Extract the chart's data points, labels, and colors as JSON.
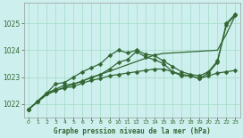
{
  "xlabel": "Graphe pression niveau de la mer (hPa)",
  "background_color": "#cdf0ee",
  "grid_color": "#aaddcc",
  "line_color": "#336633",
  "hours": [
    0,
    1,
    2,
    3,
    4,
    5,
    6,
    7,
    8,
    9,
    10,
    11,
    12,
    13,
    14,
    15,
    16,
    17,
    18,
    19,
    20,
    21,
    22,
    23
  ],
  "series_zigzag": [
    1021.8,
    1022.1,
    1022.4,
    1022.55,
    1022.7,
    1022.75,
    1022.85,
    1023.0,
    1023.1,
    1023.3,
    1023.55,
    1023.65,
    1023.95,
    1023.75,
    1023.65,
    1023.5,
    1023.2,
    1023.05,
    1023.05,
    1022.95,
    1023.15,
    1023.55,
    1024.95,
    1025.3
  ],
  "series_upper": [
    1021.8,
    1022.1,
    1022.4,
    1022.75,
    1022.8,
    1023.0,
    1023.2,
    1023.35,
    1023.5,
    1023.8,
    1024.0,
    1023.9,
    1024.0,
    1023.85,
    1023.8,
    1023.6,
    1023.4,
    1023.2,
    1023.1,
    1023.05,
    1023.2,
    1023.6,
    1025.0,
    1025.35
  ],
  "series_lower": [
    1021.8,
    1022.1,
    1022.4,
    1022.5,
    1022.6,
    1022.65,
    1022.78,
    1022.88,
    1022.95,
    1023.05,
    1023.1,
    1023.15,
    1023.2,
    1023.25,
    1023.3,
    1023.3,
    1023.2,
    1023.1,
    1023.05,
    1022.95,
    1023.05,
    1023.15,
    1023.2,
    1023.25
  ],
  "series_trend": [
    1021.8,
    1022.07,
    1022.34,
    1022.5,
    1022.62,
    1022.74,
    1022.86,
    1022.98,
    1023.1,
    1023.22,
    1023.34,
    1023.46,
    1023.58,
    1023.7,
    1023.82,
    1023.88,
    1023.9,
    1023.92,
    1023.94,
    1023.96,
    1023.98,
    1024.0,
    1024.6,
    1025.3
  ],
  "ylim": [
    1021.5,
    1025.75
  ],
  "yticks": [
    1022,
    1023,
    1024,
    1025
  ],
  "xlim": [
    -0.5,
    23.5
  ],
  "marker_size": 2.5,
  "line_width": 0.9
}
